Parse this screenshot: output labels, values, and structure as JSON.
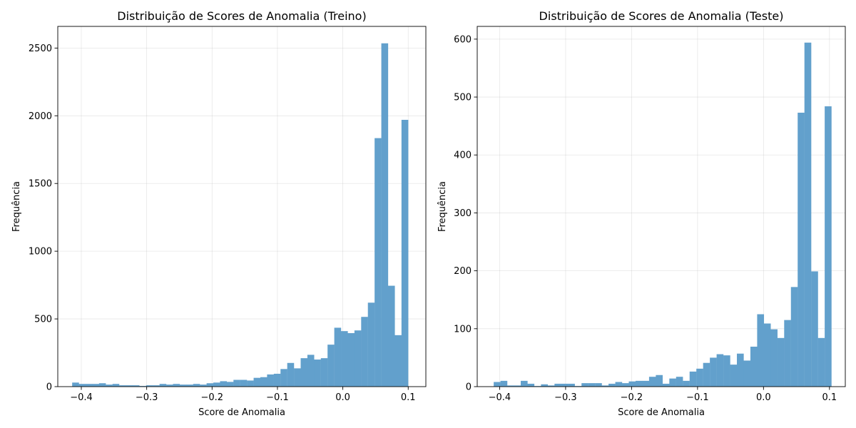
{
  "chart_data": [
    {
      "type": "bar",
      "title": "Distribuição de Scores de Anomalia (Treino)",
      "xlabel": "Score de Anomalia",
      "ylabel": "Frequência",
      "xlim": [
        -0.436,
        0.127
      ],
      "ylim": [
        0,
        2660
      ],
      "xticks": [
        -0.4,
        -0.3,
        -0.2,
        -0.1,
        0.0,
        0.1
      ],
      "xtick_labels": [
        "−0.4",
        "−0.3",
        "−0.2",
        "−0.1",
        "0.0",
        "0.1"
      ],
      "yticks": [
        0,
        500,
        1000,
        1500,
        2000,
        2500
      ],
      "ytick_labels": [
        "0",
        "500",
        "1000",
        "1500",
        "2000",
        "2500"
      ],
      "grid": true,
      "color": "#5f9ecb",
      "bin_start": -0.414,
      "bin_width": 0.01028,
      "values": [
        30,
        20,
        20,
        20,
        25,
        15,
        20,
        10,
        10,
        10,
        5,
        10,
        10,
        20,
        15,
        20,
        15,
        15,
        20,
        15,
        25,
        30,
        40,
        35,
        50,
        50,
        45,
        65,
        70,
        90,
        95,
        130,
        175,
        135,
        210,
        235,
        200,
        210,
        310,
        435,
        410,
        395,
        415,
        515,
        620,
        1835,
        2535,
        745,
        380,
        1970
      ]
    },
    {
      "type": "bar",
      "title": "Distribuição de Scores de Anomalia (Teste)",
      "xlabel": "Score de Anomalia",
      "ylabel": "Frequência",
      "xlim": [
        -0.434,
        0.124
      ],
      "ylim": [
        0,
        622
      ],
      "xticks": [
        -0.4,
        -0.3,
        -0.2,
        -0.1,
        0.0,
        0.1
      ],
      "xtick_labels": [
        "−0.4",
        "−0.3",
        "−0.2",
        "−0.1",
        "0.0",
        "0.1"
      ],
      "yticks": [
        0,
        100,
        200,
        300,
        400,
        500,
        600
      ],
      "ytick_labels": [
        "0",
        "100",
        "200",
        "300",
        "400",
        "500",
        "600"
      ],
      "grid": true,
      "color": "#5f9ecb",
      "bin_start": -0.409,
      "bin_width": 0.01024,
      "values": [
        8,
        10,
        2,
        2,
        10,
        5,
        1,
        4,
        2,
        5,
        5,
        5,
        1,
        6,
        6,
        6,
        2,
        5,
        8,
        6,
        9,
        10,
        10,
        17,
        20,
        5,
        14,
        17,
        10,
        26,
        31,
        41,
        50,
        56,
        54,
        38,
        57,
        45,
        69,
        125,
        109,
        99,
        84,
        115,
        172,
        473,
        594,
        199,
        84,
        484
      ]
    }
  ]
}
